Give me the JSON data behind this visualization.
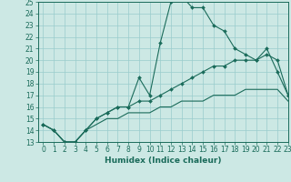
{
  "xlabel": "Humidex (Indice chaleur)",
  "background_color": "#cce8e4",
  "line_color": "#1a6b5a",
  "grid_color": "#99cccc",
  "x_values": [
    0,
    1,
    2,
    3,
    4,
    5,
    6,
    7,
    8,
    9,
    10,
    11,
    12,
    13,
    14,
    15,
    16,
    17,
    18,
    19,
    20,
    21,
    22,
    23
  ],
  "line1_y": [
    14.5,
    14.0,
    13.0,
    13.0,
    14.0,
    15.0,
    15.5,
    16.0,
    16.0,
    18.5,
    17.0,
    21.5,
    25.0,
    25.5,
    24.5,
    24.5,
    23.0,
    22.5,
    21.0,
    20.5,
    20.0,
    21.0,
    19.0,
    17.0
  ],
  "line2_y": [
    14.5,
    14.0,
    13.0,
    13.0,
    14.0,
    15.0,
    15.5,
    16.0,
    16.0,
    16.5,
    16.5,
    17.0,
    17.5,
    18.0,
    18.5,
    19.0,
    19.5,
    19.5,
    20.0,
    20.0,
    20.0,
    20.5,
    20.0,
    17.0
  ],
  "line3_y": [
    14.5,
    14.0,
    13.0,
    13.0,
    14.0,
    14.5,
    15.0,
    15.0,
    15.5,
    15.5,
    15.5,
    16.0,
    16.0,
    16.5,
    16.5,
    16.5,
    17.0,
    17.0,
    17.0,
    17.5,
    17.5,
    17.5,
    17.5,
    16.5
  ],
  "ylim": [
    13,
    25
  ],
  "xlim": [
    -0.5,
    23
  ],
  "yticks": [
    13,
    14,
    15,
    16,
    17,
    18,
    19,
    20,
    21,
    22,
    23,
    24,
    25
  ],
  "xticks": [
    0,
    1,
    2,
    3,
    4,
    5,
    6,
    7,
    8,
    9,
    10,
    11,
    12,
    13,
    14,
    15,
    16,
    17,
    18,
    19,
    20,
    21,
    22,
    23
  ],
  "xtick_labels": [
    "0",
    "1",
    "2",
    "3",
    "4",
    "5",
    "6",
    "7",
    "8",
    "9",
    "10",
    "11",
    "12",
    "13",
    "14",
    "15",
    "16",
    "17",
    "18",
    "19",
    "20",
    "21",
    "22",
    "23"
  ],
  "fontsize_ticks": 5.5,
  "fontsize_label": 6.5
}
